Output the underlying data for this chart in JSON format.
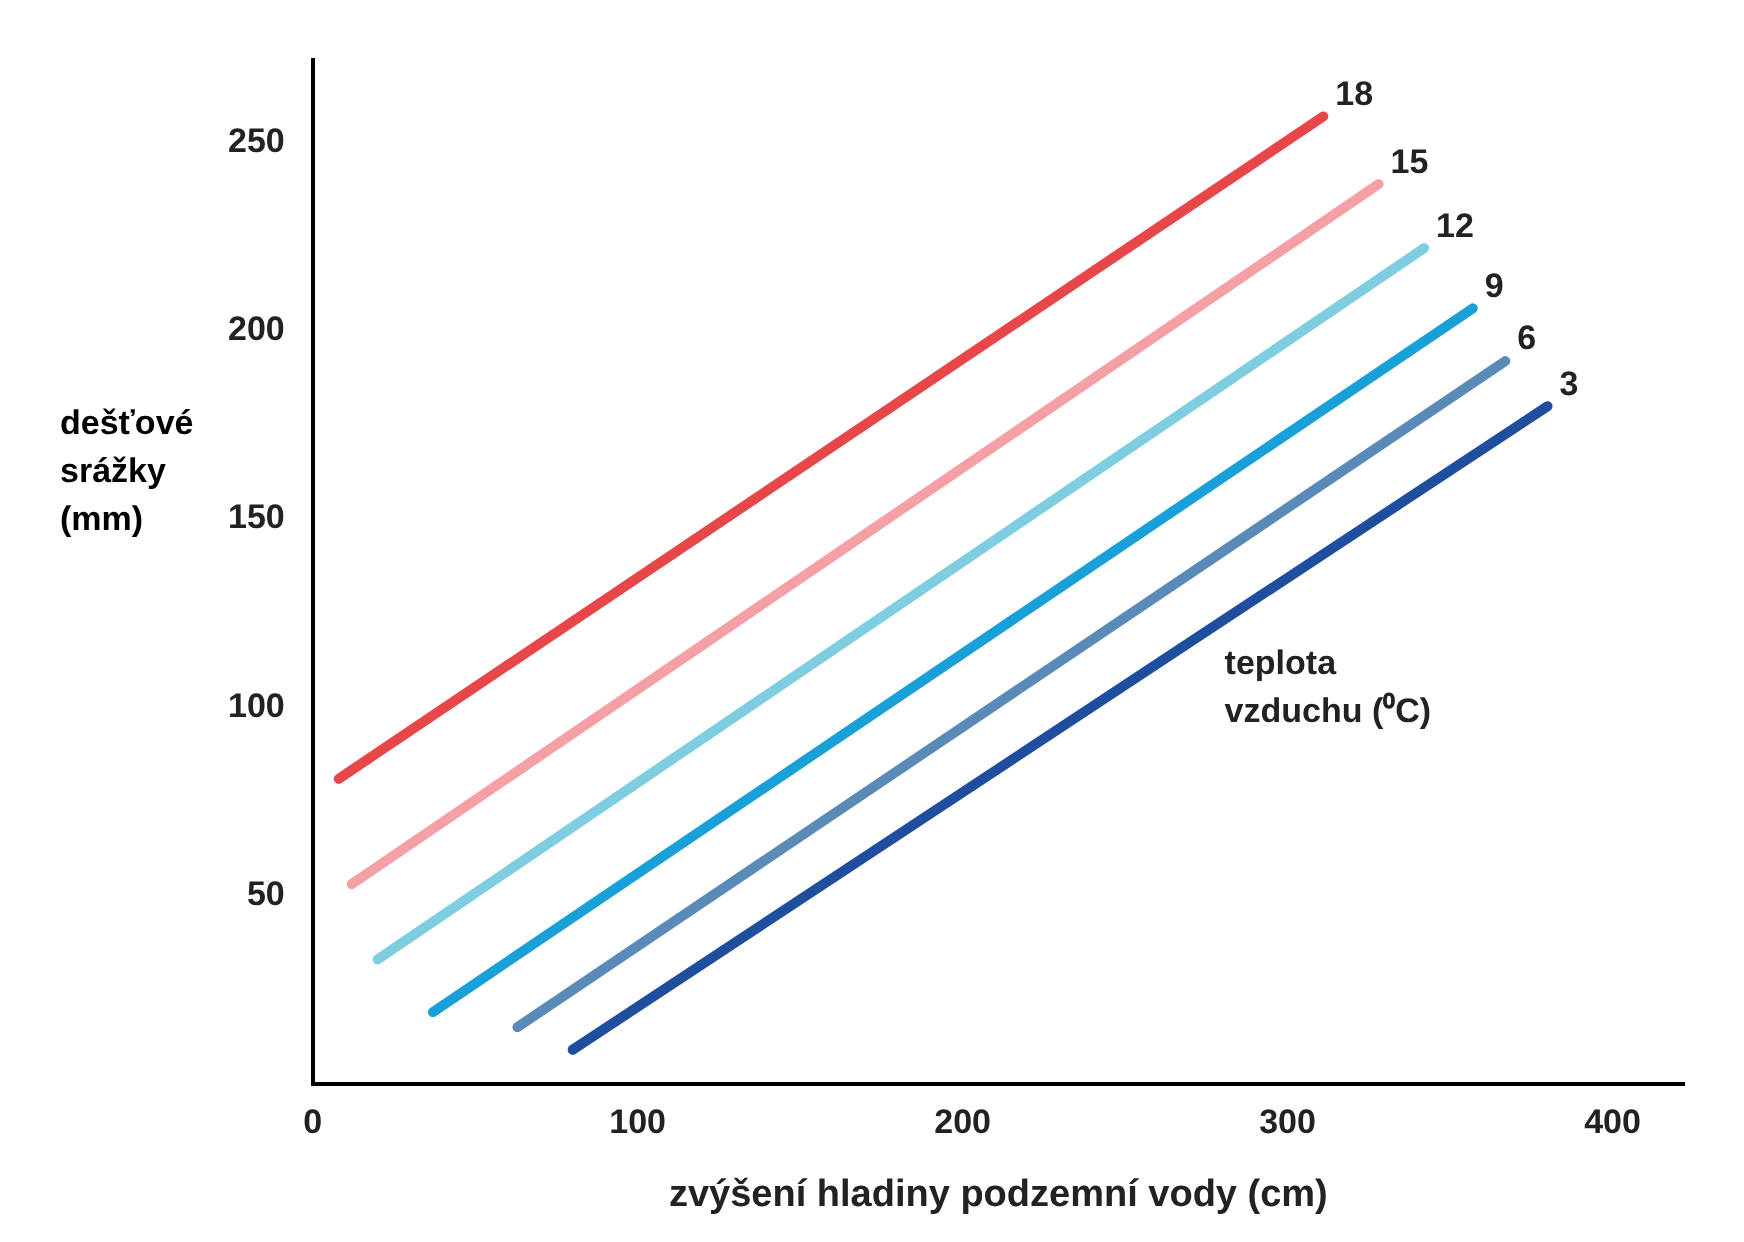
{
  "chart_data": {
    "type": "line",
    "xlabel": "zvýšení hladiny podzemní vody (cm)",
    "ylabel": "dešťové srážky (mm)",
    "annotations": [
      "teplota vzduchu (⁰C)"
    ],
    "xlim": [
      0,
      422
    ],
    "xticks": [
      0,
      100,
      200,
      300,
      400
    ],
    "ylim": [
      0,
      272
    ],
    "yticks": [
      50,
      100,
      150,
      200,
      250
    ],
    "grid": false,
    "legend": false,
    "marker": "none",
    "series": [
      {
        "name": "18",
        "color": "#e8474a",
        "x": [
          8,
          311
        ],
        "values": [
          81,
          257
        ]
      },
      {
        "name": "15",
        "color": "#f4a0a4",
        "x": [
          12,
          328
        ],
        "values": [
          53,
          239
        ]
      },
      {
        "name": "12",
        "color": "#7fcde0",
        "x": [
          20,
          342
        ],
        "values": [
          33,
          222
        ]
      },
      {
        "name": "9",
        "color": "#1aa0d8",
        "x": [
          37,
          357
        ],
        "values": [
          19,
          206
        ]
      },
      {
        "name": "6",
        "color": "#5a8ab8",
        "x": [
          63,
          367
        ],
        "values": [
          15,
          192
        ]
      },
      {
        "name": "3",
        "color": "#1f4e9e",
        "x": [
          80,
          380
        ],
        "values": [
          9,
          180
        ]
      }
    ]
  }
}
